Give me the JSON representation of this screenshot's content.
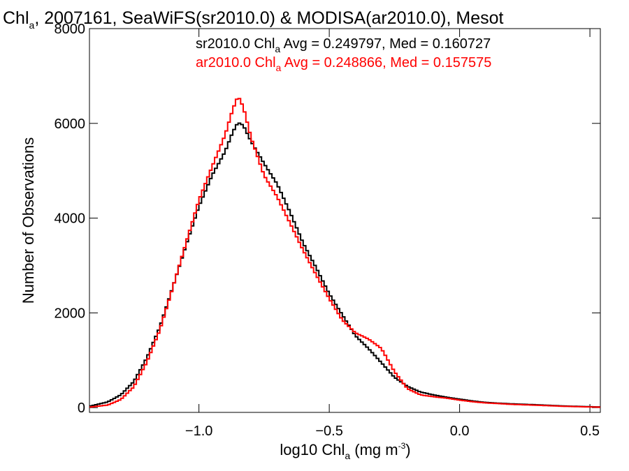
{
  "chart_data": {
    "type": "line",
    "step": true,
    "title_main": "Chl",
    "title_sub": "a",
    "title_rest": ", 2007161, SeaWiFS(sr2010.0) & MODISA(ar2010.0), Mesot",
    "xlabel_main": "log10 Chl",
    "xlabel_sub": "a",
    "xlabel_units": " (mg m",
    "xlabel_sup": "-3",
    "xlabel_close": ")",
    "ylabel": "Number of Observations",
    "xlim": [
      -1.42,
      0.54
    ],
    "ylim": [
      -100,
      8000
    ],
    "xticks": [
      -1.0,
      -0.5,
      0.0,
      0.5
    ],
    "xtick_labels": [
      "−1.0",
      "−0.5",
      "0.0",
      "0.5"
    ],
    "yticks": [
      0,
      2000,
      4000,
      6000,
      8000
    ],
    "ytick_labels": [
      "0",
      "2000",
      "4000",
      "6000",
      "8000"
    ],
    "grid": false,
    "legend_position": "top-right",
    "series": [
      {
        "name": "sr2010.0",
        "color": "#000000",
        "legend_prefix": "sr2010.0 Chl",
        "legend_sub": "a",
        "legend_suffix": " Avg = 0.249797, Med = 0.160727",
        "points": [
          [
            -1.42,
            30
          ],
          [
            -1.35,
            120
          ],
          [
            -1.3,
            270
          ],
          [
            -1.25,
            550
          ],
          [
            -1.2,
            1050
          ],
          [
            -1.15,
            1700
          ],
          [
            -1.1,
            2550
          ],
          [
            -1.05,
            3420
          ],
          [
            -1.0,
            4250
          ],
          [
            -0.95,
            4900
          ],
          [
            -0.9,
            5400
          ],
          [
            -0.87,
            5820
          ],
          [
            -0.85,
            6020
          ],
          [
            -0.83,
            5960
          ],
          [
            -0.8,
            5620
          ],
          [
            -0.75,
            5150
          ],
          [
            -0.7,
            4720
          ],
          [
            -0.65,
            4120
          ],
          [
            -0.6,
            3470
          ],
          [
            -0.55,
            2950
          ],
          [
            -0.5,
            2400
          ],
          [
            -0.45,
            1960
          ],
          [
            -0.4,
            1520
          ],
          [
            -0.35,
            1250
          ],
          [
            -0.3,
            950
          ],
          [
            -0.25,
            640
          ],
          [
            -0.2,
            450
          ],
          [
            -0.15,
            330
          ],
          [
            -0.1,
            270
          ],
          [
            -0.05,
            220
          ],
          [
            0.0,
            180
          ],
          [
            0.05,
            140
          ],
          [
            0.1,
            110
          ],
          [
            0.2,
            80
          ],
          [
            0.3,
            60
          ],
          [
            0.4,
            35
          ],
          [
            0.5,
            20
          ],
          [
            0.54,
            15
          ]
        ]
      },
      {
        "name": "ar2010.0",
        "color": "#ff0000",
        "legend_prefix": "ar2010.0 Chl",
        "legend_sub": "a",
        "legend_suffix": " Avg = 0.248866, Med = 0.157575",
        "points": [
          [
            -1.42,
            10
          ],
          [
            -1.35,
            55
          ],
          [
            -1.3,
            170
          ],
          [
            -1.25,
            440
          ],
          [
            -1.2,
            960
          ],
          [
            -1.15,
            1640
          ],
          [
            -1.1,
            2540
          ],
          [
            -1.05,
            3470
          ],
          [
            -1.0,
            4380
          ],
          [
            -0.95,
            5080
          ],
          [
            -0.9,
            5750
          ],
          [
            -0.87,
            6300
          ],
          [
            -0.85,
            6580
          ],
          [
            -0.83,
            6350
          ],
          [
            -0.8,
            5700
          ],
          [
            -0.75,
            4900
          ],
          [
            -0.7,
            4450
          ],
          [
            -0.65,
            3890
          ],
          [
            -0.6,
            3320
          ],
          [
            -0.55,
            2800
          ],
          [
            -0.5,
            2300
          ],
          [
            -0.45,
            1850
          ],
          [
            -0.4,
            1580
          ],
          [
            -0.35,
            1450
          ],
          [
            -0.3,
            1250
          ],
          [
            -0.25,
            760
          ],
          [
            -0.2,
            400
          ],
          [
            -0.15,
            270
          ],
          [
            -0.1,
            230
          ],
          [
            -0.05,
            200
          ],
          [
            0.0,
            160
          ],
          [
            0.05,
            125
          ],
          [
            0.1,
            100
          ],
          [
            0.2,
            70
          ],
          [
            0.3,
            50
          ],
          [
            0.4,
            28
          ],
          [
            0.5,
            15
          ],
          [
            0.54,
            10
          ]
        ]
      }
    ]
  }
}
